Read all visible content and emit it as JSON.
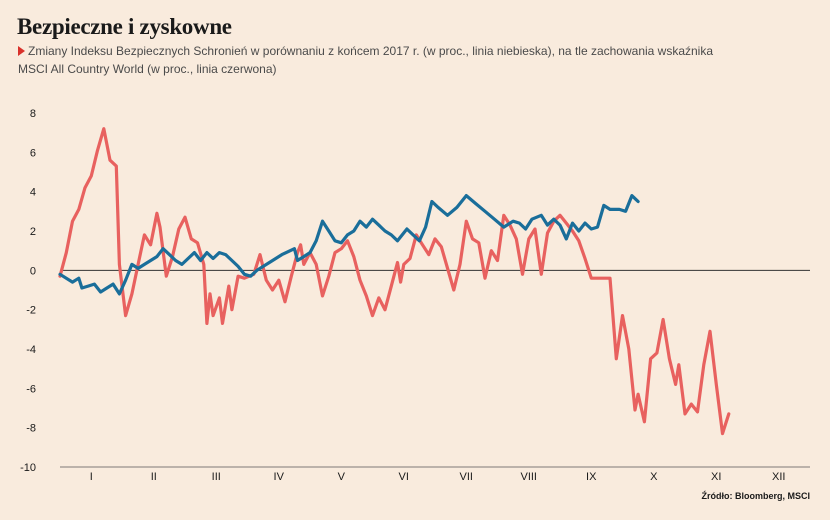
{
  "header": {
    "title": "Bezpieczne i zyskowne",
    "subtitle": "Zmiany Indeksu Bezpiecznych Schronień w porównaniu z końcem 2017 r. (w proc., linia niebieska), na tle zachowania wskaźnika MSCI All Country World (w proc., linia czerwona)"
  },
  "footer": {
    "source": "Źródło: Bloomberg, MSCI"
  },
  "chart_data": {
    "type": "line",
    "title": "Bezpieczne i zyskowne",
    "xlabel": "",
    "ylabel": "",
    "ylim": [
      -10,
      8
    ],
    "yticks": [
      8,
      6,
      4,
      2,
      0,
      -2,
      -4,
      -6,
      -8,
      -10
    ],
    "xlim": [
      0,
      12
    ],
    "xtick_labels": [
      "I",
      "II",
      "III",
      "IV",
      "V",
      "VI",
      "VII",
      "VIII",
      "IX",
      "X",
      "XI",
      "XII"
    ],
    "xtick_positions": [
      0.5,
      1.5,
      2.5,
      3.5,
      4.5,
      5.5,
      6.5,
      7.5,
      8.5,
      9.5,
      10.5,
      11.5
    ],
    "grid": false,
    "zero_line": true,
    "series": [
      {
        "color": "#e8615f",
        "points": [
          [
            0.0,
            -0.3
          ],
          [
            0.1,
            0.9
          ],
          [
            0.2,
            2.5
          ],
          [
            0.3,
            3.1
          ],
          [
            0.4,
            4.2
          ],
          [
            0.5,
            4.8
          ],
          [
            0.6,
            6.1
          ],
          [
            0.7,
            7.2
          ],
          [
            0.8,
            5.6
          ],
          [
            0.9,
            5.3
          ],
          [
            0.95,
            0.3
          ],
          [
            1.05,
            -2.3
          ],
          [
            1.15,
            -1.2
          ],
          [
            1.25,
            0.3
          ],
          [
            1.35,
            1.8
          ],
          [
            1.45,
            1.3
          ],
          [
            1.55,
            2.9
          ],
          [
            1.6,
            2.2
          ],
          [
            1.7,
            -0.3
          ],
          [
            1.8,
            0.7
          ],
          [
            1.9,
            2.1
          ],
          [
            2.0,
            2.7
          ],
          [
            2.1,
            1.6
          ],
          [
            2.2,
            1.4
          ],
          [
            2.3,
            0.3
          ],
          [
            2.35,
            -2.7
          ],
          [
            2.4,
            -1.2
          ],
          [
            2.45,
            -2.3
          ],
          [
            2.55,
            -1.4
          ],
          [
            2.6,
            -2.7
          ],
          [
            2.7,
            -0.8
          ],
          [
            2.75,
            -2.0
          ],
          [
            2.85,
            -0.3
          ],
          [
            2.95,
            -0.4
          ],
          [
            3.1,
            -0.2
          ],
          [
            3.2,
            0.8
          ],
          [
            3.3,
            -0.5
          ],
          [
            3.4,
            -1.0
          ],
          [
            3.5,
            -0.5
          ],
          [
            3.6,
            -1.6
          ],
          [
            3.7,
            -0.3
          ],
          [
            3.8,
            0.9
          ],
          [
            3.85,
            1.3
          ],
          [
            3.9,
            0.3
          ],
          [
            4.0,
            0.9
          ],
          [
            4.1,
            0.3
          ],
          [
            4.2,
            -1.3
          ],
          [
            4.3,
            -0.3
          ],
          [
            4.4,
            0.9
          ],
          [
            4.5,
            1.1
          ],
          [
            4.6,
            1.5
          ],
          [
            4.7,
            0.7
          ],
          [
            4.8,
            -0.5
          ],
          [
            4.9,
            -1.3
          ],
          [
            5.0,
            -2.3
          ],
          [
            5.1,
            -1.4
          ],
          [
            5.2,
            -2.0
          ],
          [
            5.3,
            -0.8
          ],
          [
            5.4,
            0.4
          ],
          [
            5.45,
            -0.6
          ],
          [
            5.5,
            0.3
          ],
          [
            5.6,
            0.6
          ],
          [
            5.7,
            1.8
          ],
          [
            5.8,
            1.3
          ],
          [
            5.9,
            0.8
          ],
          [
            6.0,
            1.6
          ],
          [
            6.1,
            1.2
          ],
          [
            6.3,
            -1.0
          ],
          [
            6.4,
            0.3
          ],
          [
            6.5,
            2.5
          ],
          [
            6.6,
            1.6
          ],
          [
            6.7,
            1.4
          ],
          [
            6.8,
            -0.4
          ],
          [
            6.9,
            1.0
          ],
          [
            7.0,
            0.5
          ],
          [
            7.1,
            2.8
          ],
          [
            7.2,
            2.3
          ],
          [
            7.3,
            1.6
          ],
          [
            7.4,
            -0.2
          ],
          [
            7.5,
            1.6
          ],
          [
            7.6,
            2.1
          ],
          [
            7.7,
            -0.2
          ],
          [
            7.8,
            1.9
          ],
          [
            7.9,
            2.5
          ],
          [
            8.0,
            2.8
          ],
          [
            8.1,
            2.4
          ],
          [
            8.2,
            2.0
          ],
          [
            8.3,
            1.5
          ],
          [
            8.4,
            0.6
          ],
          [
            8.5,
            -0.4
          ],
          [
            8.6,
            -0.4
          ],
          [
            8.7,
            -0.4
          ],
          [
            8.8,
            -0.4
          ],
          [
            8.9,
            -4.5
          ],
          [
            9.0,
            -2.3
          ],
          [
            9.1,
            -4.0
          ],
          [
            9.2,
            -7.1
          ],
          [
            9.25,
            -6.3
          ],
          [
            9.35,
            -7.7
          ],
          [
            9.45,
            -4.5
          ],
          [
            9.55,
            -4.2
          ],
          [
            9.65,
            -2.5
          ],
          [
            9.75,
            -4.5
          ],
          [
            9.85,
            -5.8
          ],
          [
            9.9,
            -4.8
          ],
          [
            10.0,
            -7.3
          ],
          [
            10.1,
            -6.8
          ],
          [
            10.2,
            -7.2
          ],
          [
            10.3,
            -4.8
          ],
          [
            10.4,
            -3.1
          ],
          [
            10.5,
            -5.8
          ],
          [
            10.6,
            -8.3
          ],
          [
            10.7,
            -7.3
          ]
        ]
      },
      {
        "color": "#1a6e9a",
        "points": [
          [
            0.0,
            -0.2
          ],
          [
            0.2,
            -0.6
          ],
          [
            0.3,
            -0.4
          ],
          [
            0.35,
            -0.9
          ],
          [
            0.45,
            -0.8
          ],
          [
            0.55,
            -0.7
          ],
          [
            0.65,
            -1.1
          ],
          [
            0.75,
            -0.9
          ],
          [
            0.85,
            -0.7
          ],
          [
            0.95,
            -1.2
          ],
          [
            1.05,
            -0.5
          ],
          [
            1.15,
            0.3
          ],
          [
            1.25,
            0.1
          ],
          [
            1.35,
            0.3
          ],
          [
            1.55,
            0.7
          ],
          [
            1.65,
            1.1
          ],
          [
            1.75,
            0.8
          ],
          [
            1.85,
            0.5
          ],
          [
            1.95,
            0.3
          ],
          [
            2.05,
            0.6
          ],
          [
            2.15,
            0.9
          ],
          [
            2.25,
            0.5
          ],
          [
            2.35,
            0.9
          ],
          [
            2.45,
            0.6
          ],
          [
            2.55,
            0.9
          ],
          [
            2.65,
            0.8
          ],
          [
            2.75,
            0.5
          ],
          [
            2.85,
            0.2
          ],
          [
            2.95,
            -0.2
          ],
          [
            3.05,
            -0.3
          ],
          [
            3.15,
            0.0
          ],
          [
            3.35,
            0.4
          ],
          [
            3.55,
            0.8
          ],
          [
            3.75,
            1.1
          ],
          [
            3.8,
            0.5
          ],
          [
            3.9,
            0.7
          ],
          [
            4.0,
            0.9
          ],
          [
            4.1,
            1.5
          ],
          [
            4.2,
            2.5
          ],
          [
            4.3,
            2.0
          ],
          [
            4.4,
            1.5
          ],
          [
            4.5,
            1.4
          ],
          [
            4.6,
            1.8
          ],
          [
            4.7,
            2.0
          ],
          [
            4.8,
            2.5
          ],
          [
            4.9,
            2.2
          ],
          [
            5.0,
            2.6
          ],
          [
            5.1,
            2.3
          ],
          [
            5.2,
            2.0
          ],
          [
            5.3,
            1.8
          ],
          [
            5.4,
            1.5
          ],
          [
            5.55,
            2.1
          ],
          [
            5.65,
            1.8
          ],
          [
            5.75,
            1.5
          ],
          [
            5.85,
            2.2
          ],
          [
            5.95,
            3.5
          ],
          [
            6.05,
            3.2
          ],
          [
            6.2,
            2.8
          ],
          [
            6.35,
            3.2
          ],
          [
            6.5,
            3.8
          ],
          [
            6.65,
            3.4
          ],
          [
            6.8,
            3.0
          ],
          [
            6.95,
            2.6
          ],
          [
            7.1,
            2.2
          ],
          [
            7.25,
            2.5
          ],
          [
            7.35,
            2.4
          ],
          [
            7.45,
            2.1
          ],
          [
            7.55,
            2.6
          ],
          [
            7.7,
            2.8
          ],
          [
            7.8,
            2.3
          ],
          [
            7.9,
            2.6
          ],
          [
            8.0,
            2.3
          ],
          [
            8.1,
            1.6
          ],
          [
            8.2,
            2.4
          ],
          [
            8.3,
            2.0
          ],
          [
            8.4,
            2.4
          ],
          [
            8.5,
            2.1
          ],
          [
            8.6,
            2.2
          ],
          [
            8.7,
            3.3
          ],
          [
            8.8,
            3.1
          ],
          [
            8.95,
            3.1
          ],
          [
            9.05,
            3.0
          ],
          [
            9.15,
            3.8
          ],
          [
            9.25,
            3.5
          ]
        ]
      }
    ]
  }
}
